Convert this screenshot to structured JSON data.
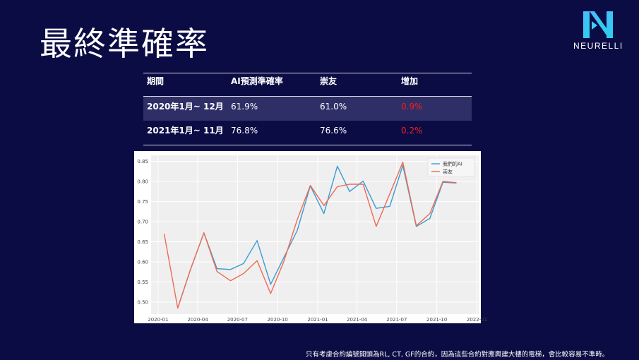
{
  "title": "最終準確率",
  "logo": {
    "text": "NEURELLI"
  },
  "table": {
    "headers": [
      "期間",
      "AI預測準確率",
      "崇友",
      "增加"
    ],
    "rows": [
      [
        "2020年1月~ 12月",
        "61.9%",
        "61.0%",
        "0.9%"
      ],
      [
        "2021年1月~ 11月",
        "76.8%",
        "76.6%",
        "0.2%"
      ]
    ]
  },
  "chart_data": {
    "type": "line",
    "x": [
      "2020-01-15",
      "2020-02-15",
      "2020-03-15",
      "2020-04-15",
      "2020-05-15",
      "2020-06-15",
      "2020-07-15",
      "2020-08-15",
      "2020-09-15",
      "2020-10-15",
      "2020-11-15",
      "2020-12-15",
      "2021-01-15",
      "2021-02-15",
      "2021-03-15",
      "2021-04-15",
      "2021-05-15",
      "2021-06-15",
      "2021-07-15",
      "2021-08-15",
      "2021-09-15",
      "2021-10-15",
      "2021-11-15",
      "2021-12-15"
    ],
    "series": [
      {
        "name": "我們的AI",
        "color": "#3a9bd5",
        "values": [
          null,
          0.485,
          0.58,
          0.672,
          0.583,
          0.581,
          0.596,
          0.653,
          0.544,
          0.61,
          0.678,
          0.789,
          0.72,
          0.838,
          0.775,
          0.801,
          0.733,
          0.738,
          0.84,
          0.688,
          0.708,
          0.798,
          0.796,
          null
        ]
      },
      {
        "name": "崇友",
        "color": "#ee6b55",
        "values": [
          0.67,
          0.485,
          0.58,
          0.672,
          0.576,
          0.553,
          0.571,
          0.603,
          0.521,
          0.6,
          0.705,
          0.79,
          0.74,
          0.787,
          0.793,
          0.793,
          0.688,
          0.769,
          0.848,
          0.69,
          0.72,
          0.8,
          0.797,
          null
        ]
      }
    ],
    "xticks": [
      "2020-01",
      "2020-04",
      "2020-07",
      "2020-10",
      "2021-01",
      "2021-04",
      "2021-07",
      "2021-10",
      "2022-01"
    ],
    "yticks": [
      "0.50",
      "0.55",
      "0.60",
      "0.65",
      "0.70",
      "0.75",
      "0.80",
      "0.85"
    ],
    "xlim": [
      "2019-12-16",
      "2022-01-05"
    ],
    "ylim": [
      0.47,
      0.865
    ],
    "grid": true,
    "legend": "top-right",
    "background": "#efefef"
  },
  "footnote": "只有考慮合約編號開頭為RL, CT, GF的合約，因為這些合約對應興建大樓的電梯，會比較容易不準時。"
}
